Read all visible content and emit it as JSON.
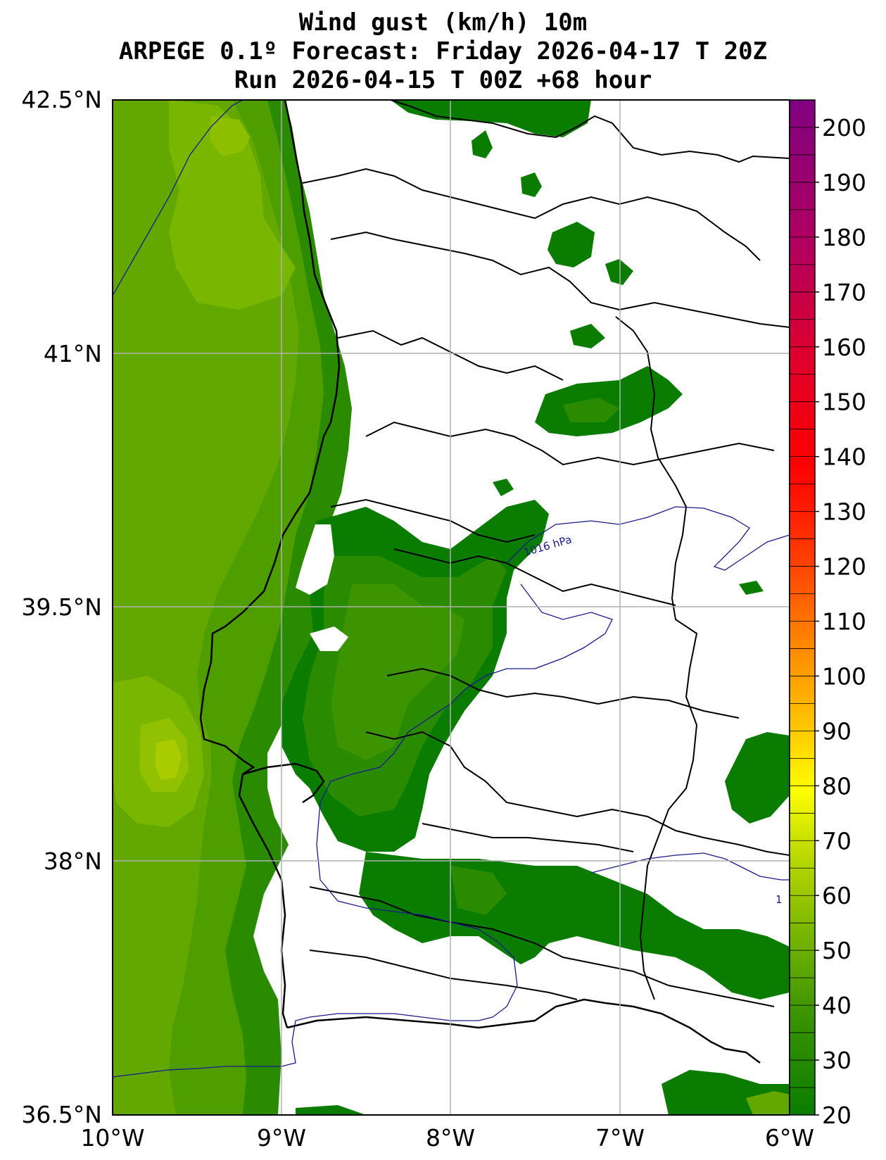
{
  "title": {
    "line1": "Wind gust (km/h) 10m",
    "line2": "ARPEGE 0.1º Forecast: Friday 2026-04-17 T 20Z",
    "line3": "Run 2026-04-15 T 00Z +68 hour"
  },
  "axes": {
    "lat_ticks": [
      "42.5°N",
      "41°N",
      "39.5°N",
      "38°N",
      "36.5°N"
    ],
    "lon_ticks": [
      "10°W",
      "9°W",
      "8°W",
      "7°W",
      "6°W"
    ]
  },
  "isobar_labels": [
    "1016 hPa",
    "1"
  ],
  "colorbar": {
    "min": 20,
    "max": 205,
    "labels": [
      "200",
      "190",
      "180",
      "170",
      "160",
      "150",
      "140",
      "130",
      "120",
      "110",
      "100",
      "90",
      "80",
      "70",
      "60",
      "50",
      "40",
      "30",
      "20"
    ]
  },
  "colors": {
    "land": "#ffffff",
    "green_25": "#0a7d00",
    "green_30": "#2a8a00",
    "green_35": "#3c9400",
    "green_40": "#4e9e00",
    "green_45": "#62a800",
    "green_50": "#79b600",
    "green_55": "#91c100",
    "isobar": "#1a1a8c"
  }
}
